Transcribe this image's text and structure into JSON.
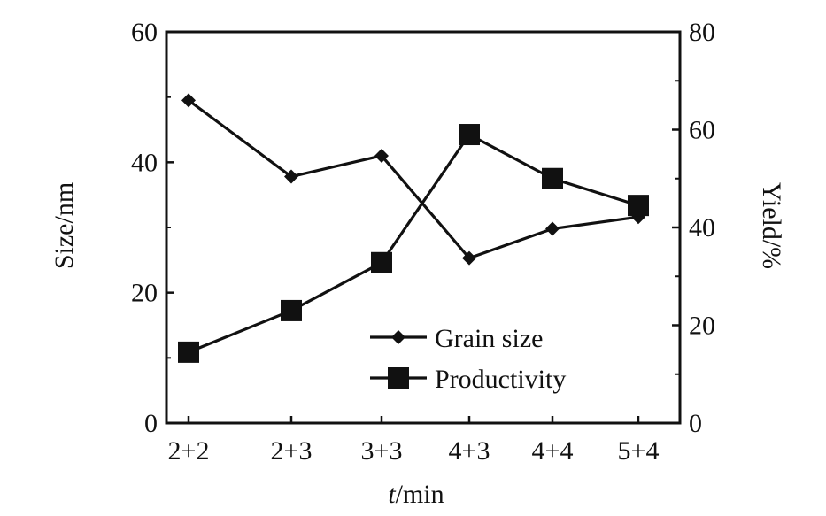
{
  "chart_data": {
    "type": "line",
    "categories": [
      "2+2",
      "2+3",
      "3+3",
      "4+3",
      "4+4",
      "5+4"
    ],
    "x_axis": {
      "label_prefix": "t",
      "label_suffix": "/min"
    },
    "left_axis": {
      "label": "Size/nm",
      "range": [
        0,
        60
      ],
      "ticks": [
        0,
        20,
        40,
        60
      ]
    },
    "right_axis": {
      "label": "Yield/%",
      "range": [
        0,
        80
      ],
      "ticks": [
        0,
        20,
        40,
        60,
        80
      ]
    },
    "series": [
      {
        "name": "Grain size",
        "axis": "left",
        "marker": "diamond",
        "values": [
          49.5,
          37.8,
          41,
          25.3,
          29.8,
          31.6
        ]
      },
      {
        "name": "Productivity",
        "axis": "right",
        "marker": "square",
        "values": [
          14.5,
          23,
          32.8,
          59,
          50,
          44.5
        ]
      }
    ],
    "legend_position": "bottom-right",
    "grid": false
  }
}
